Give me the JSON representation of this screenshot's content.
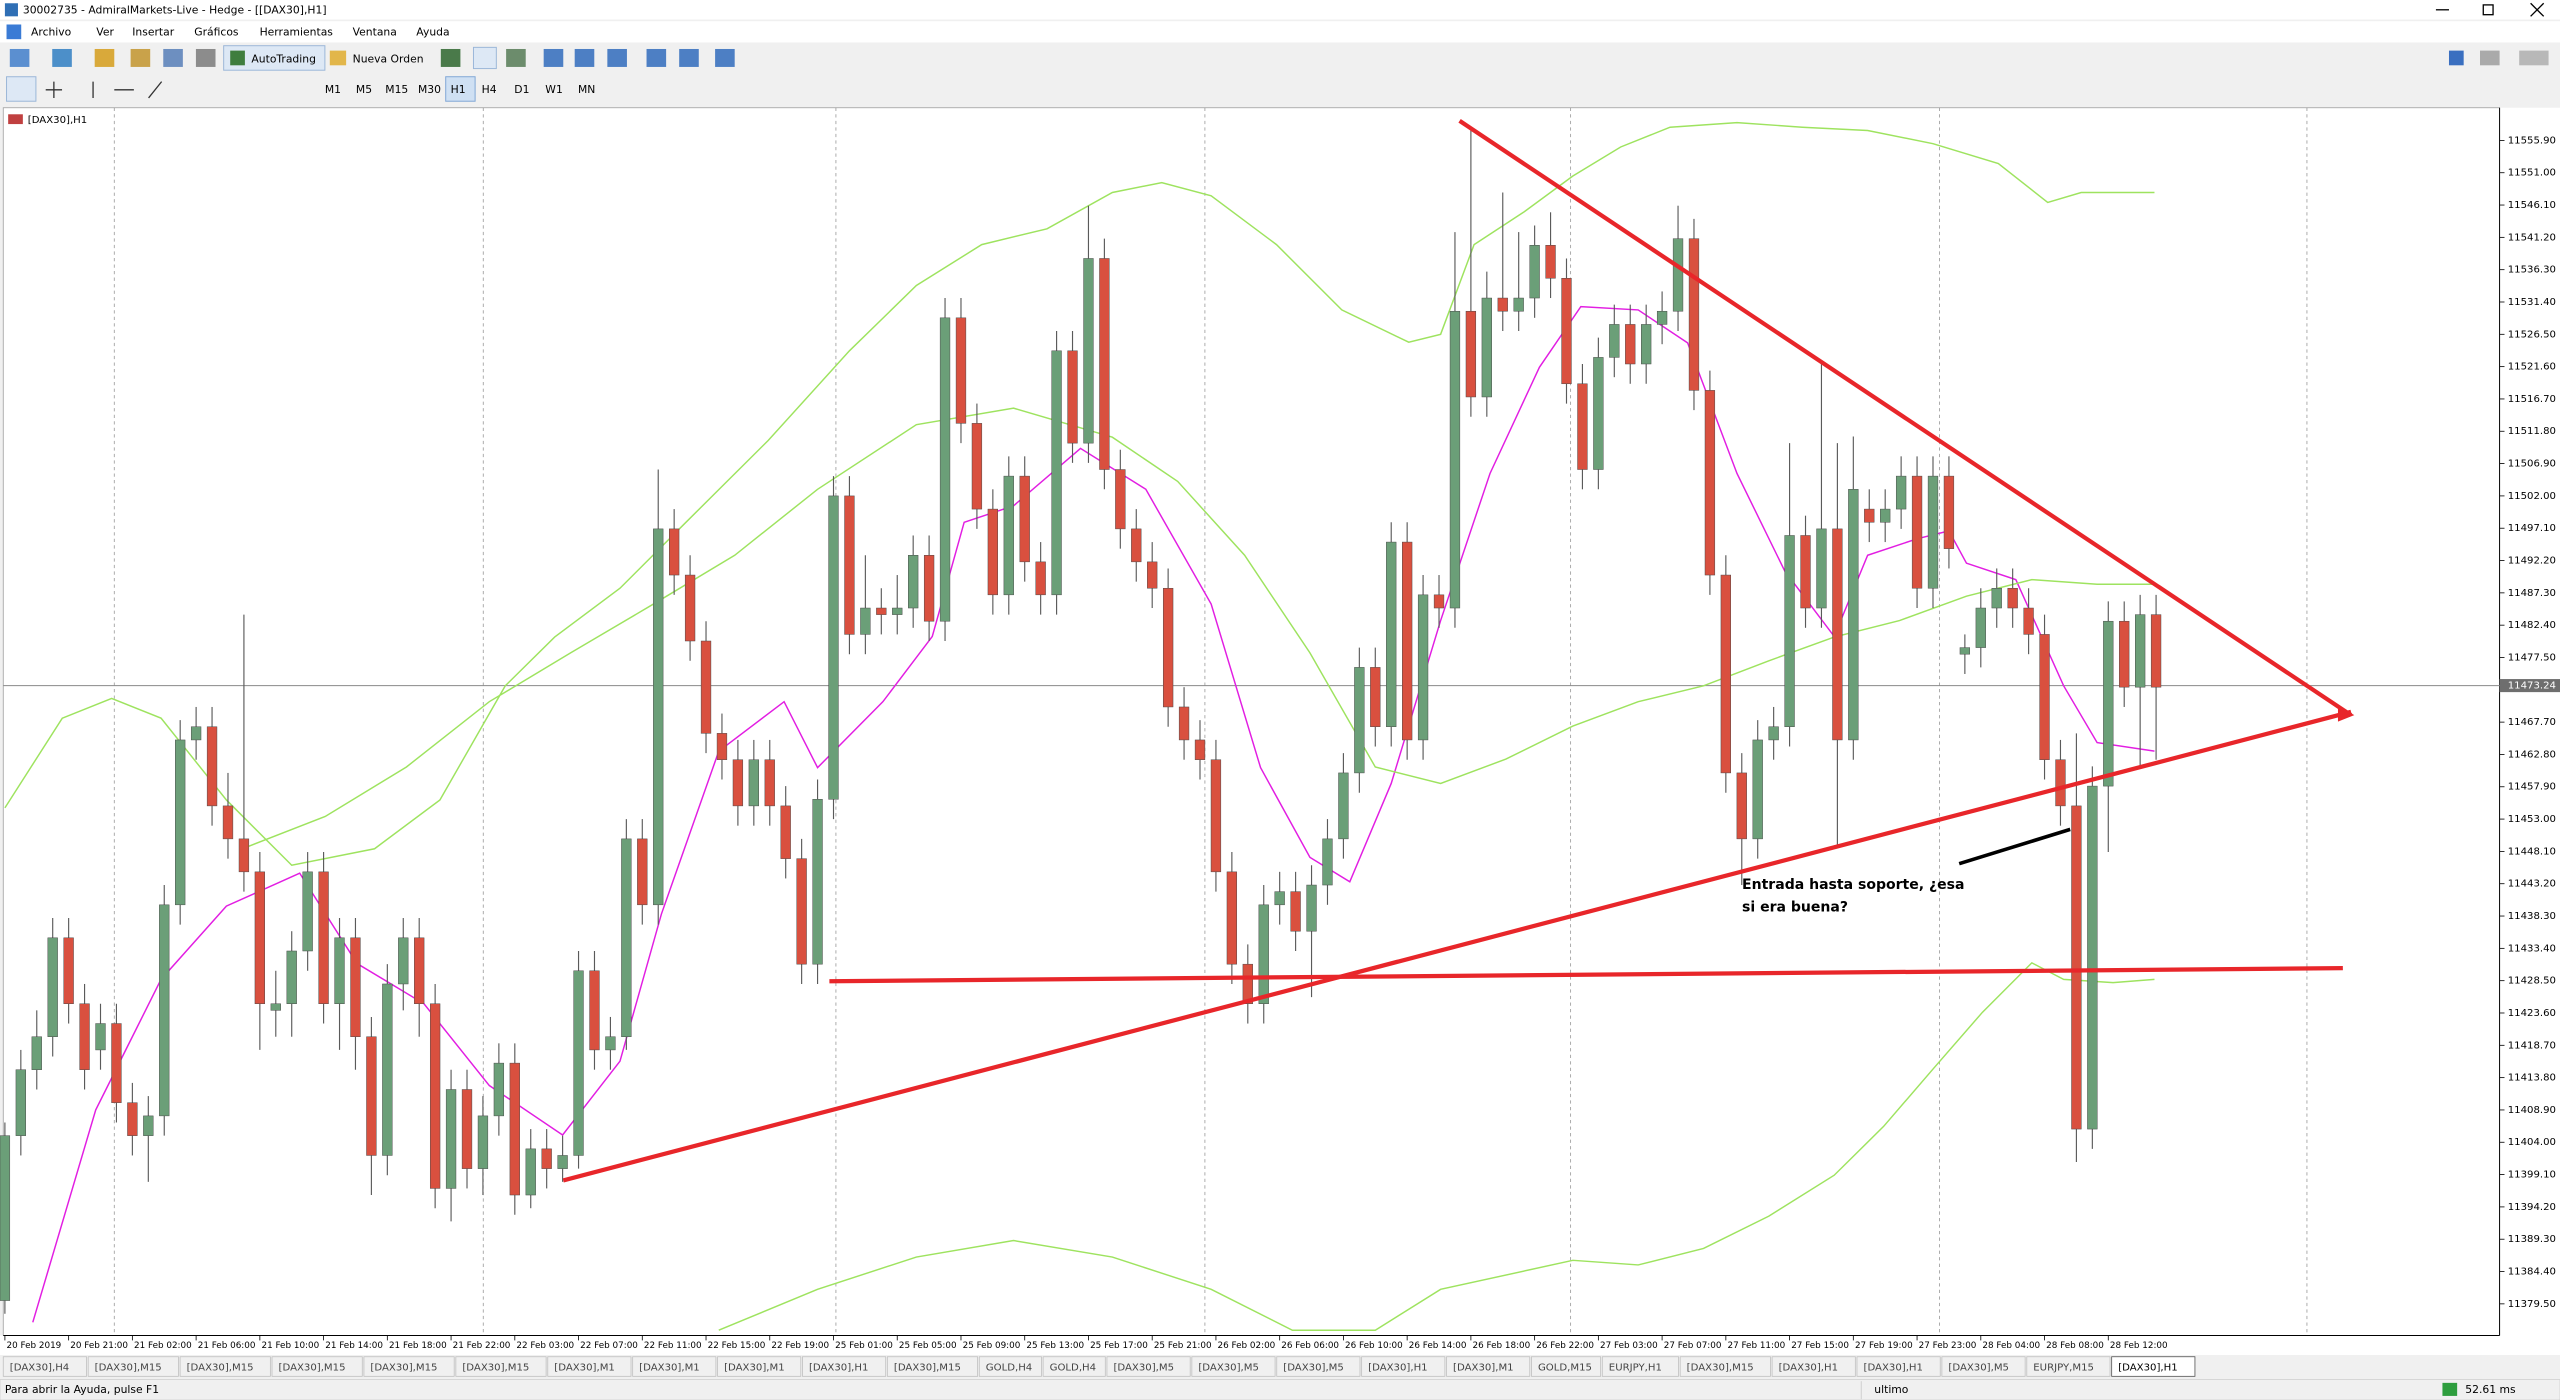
{
  "window": {
    "title": "30002735 - AdmiralMarkets-Live - Hedge - [[DAX30],H1]"
  },
  "menu": [
    "Archivo",
    "Ver",
    "Insertar",
    "Gráficos",
    "Herramientas",
    "Ventana",
    "Ayuda"
  ],
  "toolbar": {
    "autotrading": "AutoTrading",
    "new_order": "Nueva Orden",
    "timeframes": [
      "M1",
      "M5",
      "M15",
      "M30",
      "H1",
      "H4",
      "D1",
      "W1",
      "MN"
    ],
    "active_timeframe": "H1"
  },
  "chart_data": {
    "type": "candlestick",
    "symbol_label": "[DAX30],H1",
    "up_color": "#6b9f78",
    "down_color": "#d9503f",
    "ylim": [
      11374.7,
      11560.85
    ],
    "yticks": [
      {
        "value": 11555.9,
        "label": "11555.90"
      },
      {
        "value": 11551,
        "label": "11551.00"
      },
      {
        "value": 11546.1,
        "label": "11546.10"
      },
      {
        "value": 11541.2,
        "label": "11541.20"
      },
      {
        "value": 11536.3,
        "label": "11536.30"
      },
      {
        "value": 11531.4,
        "label": "11531.40"
      },
      {
        "value": 11526.5,
        "label": "11526.50"
      },
      {
        "value": 11521.6,
        "label": "11521.60"
      },
      {
        "value": 11516.7,
        "label": "11516.70"
      },
      {
        "value": 11511.8,
        "label": "11511.80"
      },
      {
        "value": 11506.9,
        "label": "11506.90"
      },
      {
        "value": 11502,
        "label": "11502.00"
      },
      {
        "value": 11497.1,
        "label": "11497.10"
      },
      {
        "value": 11492.2,
        "label": "11492.20"
      },
      {
        "value": 11487.3,
        "label": "11487.30"
      },
      {
        "value": 11482.4,
        "label": "11482.40"
      },
      {
        "value": 11477.5,
        "label": "11477.50"
      },
      {
        "value": 11467.7,
        "label": "11467.70"
      },
      {
        "value": 11462.8,
        "label": "11462.80"
      },
      {
        "value": 11457.9,
        "label": "11457.90"
      },
      {
        "value": 11453,
        "label": "11453.00"
      },
      {
        "value": 11448.1,
        "label": "11448.10"
      },
      {
        "value": 11443.2,
        "label": "11443.20"
      },
      {
        "value": 11438.3,
        "label": "11438.30"
      },
      {
        "value": 11433.4,
        "label": "11433.40"
      },
      {
        "value": 11428.5,
        "label": "11428.50"
      },
      {
        "value": 11423.6,
        "label": "11423.60"
      },
      {
        "value": 11418.7,
        "label": "11418.70"
      },
      {
        "value": 11413.8,
        "label": "11413.80"
      },
      {
        "value": 11408.9,
        "label": "11408.90"
      },
      {
        "value": 11404,
        "label": "11404.00"
      },
      {
        "value": 11399.1,
        "label": "11399.10"
      },
      {
        "value": 11394.2,
        "label": "11394.20"
      },
      {
        "value": 11389.3,
        "label": "11389.30"
      },
      {
        "value": 11384.4,
        "label": "11384.40"
      },
      {
        "value": 11379.5,
        "label": "11379.50"
      }
    ],
    "current_price": 11473.24,
    "time_labels": [
      "20 Feb 2019",
      "20 Feb 21:00",
      "21 Feb 02:00",
      "21 Feb 06:00",
      "21 Feb 10:00",
      "21 Feb 14:00",
      "21 Feb 18:00",
      "21 Feb 22:00",
      "22 Feb 03:00",
      "22 Feb 07:00",
      "22 Feb 11:00",
      "22 Feb 15:00",
      "22 Feb 19:00",
      "25 Feb 01:00",
      "25 Feb 05:00",
      "25 Feb 09:00",
      "25 Feb 13:00",
      "25 Feb 17:00",
      "25 Feb 21:00",
      "26 Feb 02:00",
      "26 Feb 06:00",
      "26 Feb 10:00",
      "26 Feb 14:00",
      "26 Feb 18:00",
      "26 Feb 22:00",
      "27 Feb 03:00",
      "27 Feb 07:00",
      "27 Feb 11:00",
      "27 Feb 15:00",
      "27 Feb 19:00",
      "27 Feb 23:00",
      "28 Feb 04:00",
      "28 Feb 08:00",
      "28 Feb 12:00"
    ],
    "candles": [
      [
        11380,
        11407,
        11378,
        11405
      ],
      [
        11405,
        11418,
        11402,
        11415
      ],
      [
        11415,
        11424,
        11412,
        11420
      ],
      [
        11420,
        11438,
        11417,
        11435
      ],
      [
        11435,
        11438,
        11422,
        11425
      ],
      [
        11425,
        11428,
        11412,
        11415
      ],
      [
        11418,
        11425,
        11415,
        11422
      ],
      [
        11422,
        11425,
        11407,
        11410
      ],
      [
        11410,
        11413,
        11402,
        11405
      ],
      [
        11405,
        11411,
        11398,
        11408
      ],
      [
        11408,
        11443,
        11405,
        11440
      ],
      [
        11440,
        11468,
        11437,
        11465
      ],
      [
        11465,
        11470,
        11462,
        11467
      ],
      [
        11467,
        11470,
        11452,
        11455
      ],
      [
        11455,
        11460,
        11447,
        11450
      ],
      [
        11450,
        11484,
        11442,
        11445
      ],
      [
        11445,
        11448,
        11418,
        11425
      ],
      [
        11424,
        11430,
        11420,
        11425
      ],
      [
        11425,
        11436,
        11420,
        11433
      ],
      [
        11433,
        11448,
        11430,
        11445
      ],
      [
        11445,
        11448,
        11422,
        11425
      ],
      [
        11425,
        11438,
        11418,
        11435
      ],
      [
        11435,
        11438,
        11415,
        11420
      ],
      [
        11420,
        11423,
        11396,
        11402
      ],
      [
        11402,
        11431,
        11399,
        11428
      ],
      [
        11428,
        11438,
        11424,
        11435
      ],
      [
        11435,
        11438,
        11420,
        11425
      ],
      [
        11425,
        11428,
        11394,
        11397
      ],
      [
        11397,
        11415,
        11392,
        11412
      ],
      [
        11412,
        11415,
        11397,
        11400
      ],
      [
        11400,
        11411,
        11396,
        11408
      ],
      [
        11408,
        11419,
        11405,
        11416
      ],
      [
        11416,
        11419,
        11393,
        11396
      ],
      [
        11396,
        11406,
        11394,
        11403
      ],
      [
        11403,
        11406,
        11397,
        11400
      ],
      [
        11400,
        11405,
        11398,
        11402
      ],
      [
        11402,
        11433,
        11400,
        11430
      ],
      [
        11430,
        11433,
        11415,
        11418
      ],
      [
        11418,
        11423,
        11415,
        11420
      ],
      [
        11420,
        11453,
        11418,
        11450
      ],
      [
        11450,
        11453,
        11437,
        11440
      ],
      [
        11440,
        11506,
        11437,
        11497
      ],
      [
        11497,
        11500,
        11487,
        11490
      ],
      [
        11490,
        11493,
        11477,
        11480
      ],
      [
        11480,
        11483,
        11463,
        11466
      ],
      [
        11466,
        11469,
        11459,
        11462
      ],
      [
        11462,
        11465,
        11452,
        11455
      ],
      [
        11455,
        11465,
        11452,
        11462
      ],
      [
        11462,
        11465,
        11452,
        11455
      ],
      [
        11455,
        11458,
        11444,
        11447
      ],
      [
        11447,
        11450,
        11428,
        11431
      ],
      [
        11431,
        11459,
        11428,
        11456
      ],
      [
        11456,
        11505,
        11453,
        11502
      ],
      [
        11502,
        11505,
        11478,
        11481
      ],
      [
        11481,
        11493,
        11478,
        11485
      ],
      [
        11485,
        11488,
        11481,
        11484
      ],
      [
        11484,
        11490,
        11481,
        11485
      ],
      [
        11485,
        11496,
        11482,
        11493
      ],
      [
        11493,
        11496,
        11480,
        11483
      ],
      [
        11483,
        11532,
        11480,
        11529
      ],
      [
        11529,
        11532,
        11510,
        11513
      ],
      [
        11513,
        11516,
        11497,
        11500
      ],
      [
        11500,
        11503,
        11484,
        11487
      ],
      [
        11487,
        11508,
        11484,
        11505
      ],
      [
        11505,
        11508,
        11489,
        11492
      ],
      [
        11492,
        11495,
        11484,
        11487
      ],
      [
        11487,
        11527,
        11484,
        11524
      ],
      [
        11524,
        11527,
        11507,
        11510
      ],
      [
        11510,
        11546,
        11507,
        11538
      ],
      [
        11538,
        11541,
        11503,
        11506
      ],
      [
        11506,
        11509,
        11494,
        11497
      ],
      [
        11497,
        11500,
        11489,
        11492
      ],
      [
        11492,
        11495,
        11485,
        11488
      ],
      [
        11488,
        11491,
        11467,
        11470
      ],
      [
        11470,
        11473,
        11462,
        11465
      ],
      [
        11465,
        11468,
        11459,
        11462
      ],
      [
        11462,
        11465,
        11442,
        11445
      ],
      [
        11445,
        11448,
        11428,
        11431
      ],
      [
        11431,
        11434,
        11422,
        11425
      ],
      [
        11425,
        11443,
        11422,
        11440
      ],
      [
        11440,
        11445,
        11437,
        11442
      ],
      [
        11442,
        11445,
        11433,
        11436
      ],
      [
        11436,
        11446,
        11426,
        11443
      ],
      [
        11443,
        11453,
        11440,
        11450
      ],
      [
        11450,
        11463,
        11447,
        11460
      ],
      [
        11460,
        11479,
        11457,
        11476
      ],
      [
        11476,
        11479,
        11464,
        11467
      ],
      [
        11467,
        11498,
        11464,
        11495
      ],
      [
        11495,
        11498,
        11462,
        11465
      ],
      [
        11465,
        11490,
        11462,
        11487
      ],
      [
        11487,
        11490,
        11482,
        11485
      ],
      [
        11485,
        11542,
        11482,
        11530
      ],
      [
        11530,
        11558,
        11514,
        11517
      ],
      [
        11517,
        11536,
        11514,
        11532
      ],
      [
        11532,
        11548,
        11527,
        11530
      ],
      [
        11530,
        11542,
        11527,
        11532
      ],
      [
        11532,
        11543,
        11529,
        11540
      ],
      [
        11540,
        11545,
        11532,
        11535
      ],
      [
        11535,
        11538,
        11516,
        11519
      ],
      [
        11519,
        11522,
        11503,
        11506
      ],
      [
        11506,
        11526,
        11503,
        11523
      ],
      [
        11523,
        11531,
        11520,
        11528
      ],
      [
        11528,
        11531,
        11519,
        11522
      ],
      [
        11522,
        11531,
        11519,
        11528
      ],
      [
        11528,
        11533,
        11525,
        11530
      ],
      [
        11530,
        11546,
        11527,
        11541
      ],
      [
        11541,
        11544,
        11515,
        11518
      ],
      [
        11518,
        11521,
        11487,
        11490
      ],
      [
        11490,
        11493,
        11457,
        11460
      ],
      [
        11460,
        11463,
        11443,
        11450
      ],
      [
        11450,
        11468,
        11447,
        11465
      ],
      [
        11465,
        11470,
        11462,
        11467
      ],
      [
        11467,
        11510,
        11464,
        11496
      ],
      [
        11496,
        11499,
        11482,
        11485
      ],
      [
        11485,
        11522,
        11482,
        11497
      ],
      [
        11497,
        11510,
        11449,
        11465
      ],
      [
        11465,
        11511,
        11462,
        11503
      ],
      [
        11500,
        11503,
        11495,
        11498
      ],
      [
        11498,
        11503,
        11495,
        11500
      ],
      [
        11500,
        11508,
        11497,
        11505
      ],
      [
        11505,
        11508,
        11485,
        11488
      ],
      [
        11488,
        11508,
        11485,
        11505
      ],
      [
        11505,
        11508,
        11491,
        11494
      ],
      [
        11478,
        11481,
        11475,
        11479
      ],
      [
        11479,
        11488,
        11476,
        11485
      ],
      [
        11485,
        11491,
        11482,
        11488
      ],
      [
        11488,
        11491,
        11482,
        11485
      ],
      [
        11485,
        11488,
        11478,
        11481
      ],
      [
        11481,
        11484,
        11459,
        11462
      ],
      [
        11462,
        11465,
        11452,
        11455
      ],
      [
        11455,
        11466,
        11401,
        11406
      ],
      [
        11406,
        11461,
        11403,
        11458
      ],
      [
        11458,
        11486,
        11448,
        11483
      ],
      [
        11483,
        11486,
        11470,
        11473
      ],
      [
        11473,
        11487,
        11461,
        11484
      ],
      [
        11484,
        11487,
        11462,
        11473
      ]
    ],
    "indicators": {
      "ma": {
        "color": "#e21ee2",
        "x": [
          1.75,
          5.7,
          9.8,
          13.9,
          18.5,
          22.1,
          26.3,
          30.4,
          35,
          38.6,
          41.2,
          44.8,
          48.9,
          51,
          55.1,
          58.2,
          60.2,
          63.3,
          67.5,
          71.6,
          75.7,
          78.8,
          81.9,
          84.4,
          87,
          90.1,
          93.2,
          96.3,
          98.9,
          102.5,
          105.6,
          108.7,
          111.7,
          114.8,
          116.9,
          120,
          122,
          123.1,
          126.2,
          129.2,
          131.3,
          134.9
        ],
        "values": [
          11376.7,
          11408.9,
          11428.7,
          11439.8,
          11444.8,
          11431.1,
          11425,
          11412.6,
          11405.1,
          11416.3,
          11438.6,
          11463.3,
          11470.8,
          11460.8,
          11470.8,
          11480.7,
          11498,
          11500.5,
          11509.2,
          11503,
          11485.6,
          11460.8,
          11447.2,
          11443.5,
          11458.4,
          11483.1,
          11505.4,
          11521.5,
          11530.7,
          11530.2,
          11525.2,
          11505.4,
          11490.6,
          11480.7,
          11493,
          11495.5,
          11496.7,
          11491.8,
          11489.3,
          11473.2,
          11464.6,
          11463.3
        ]
      },
      "bb_upper": {
        "color": "#9ee35f",
        "x": [
          0,
          3.6,
          6.7,
          9.8,
          13.9,
          18,
          23.2,
          27.3,
          31.4,
          34.5,
          38.6,
          42.7,
          47.9,
          53,
          57.2,
          61.3,
          65.4,
          69.5,
          72.6,
          75.7,
          79.8,
          83.9,
          88.1,
          90.1,
          92.2,
          95.3,
          98.4,
          101.4,
          104.5,
          108.7,
          112.8,
          116.9,
          121,
          125.1,
          128.2,
          130.3,
          134.9
        ],
        "values": [
          11454.7,
          11468.3,
          11471.3,
          11468.3,
          11455.9,
          11446,
          11448.5,
          11455.9,
          11473.2,
          11480.6,
          11488,
          11497.9,
          11510.4,
          11524,
          11533.9,
          11540.1,
          11542.5,
          11548,
          11549.5,
          11547.5,
          11540.1,
          11530.2,
          11525.3,
          11526.5,
          11540.1,
          11545,
          11550.5,
          11554.9,
          11557.9,
          11558.6,
          11557.9,
          11557.4,
          11555.4,
          11552.4,
          11546.5,
          11548,
          11548
        ]
      },
      "bb_middle": {
        "color": "#9ee35f",
        "x": [
          14.9,
          20.1,
          25.2,
          30.4,
          35.5,
          40.7,
          45.8,
          51,
          57.2,
          63.3,
          69.5,
          73.6,
          77.8,
          81.9,
          86,
          90.1,
          94.2,
          98.4,
          102.5,
          106.6,
          110.7,
          114.8,
          118.9,
          123.1,
          127.2,
          131.3,
          134.9
        ],
        "values": [
          11448.5,
          11453.4,
          11460.9,
          11470.8,
          11478.2,
          11485.6,
          11493,
          11503,
          11512.8,
          11515.3,
          11510.9,
          11504.2,
          11493,
          11478.2,
          11460.9,
          11458.4,
          11462.1,
          11467.1,
          11470.8,
          11473.2,
          11477,
          11480.6,
          11483.1,
          11486.8,
          11489.3,
          11488.6,
          11488.6
        ]
      },
      "bb_lower": {
        "color": "#9ee35f",
        "x": [
          44.8,
          51,
          57.2,
          63.3,
          69.5,
          75.7,
          80.8,
          86,
          90.1,
          98.4,
          102.5,
          106.6,
          110.7,
          114.8,
          117.9,
          121,
          124.1,
          127.2,
          129.2,
          132.3,
          134.9
        ],
        "values": [
          11375.5,
          11381.7,
          11386.6,
          11389.1,
          11386.6,
          11381.7,
          11375.5,
          11375.5,
          11381.7,
          11386.1,
          11385.4,
          11387.9,
          11392.8,
          11399,
          11406.4,
          11415.1,
          11423.7,
          11431.2,
          11428.7,
          11428.2,
          11428.7
        ]
      }
    }
  },
  "annotation": [
    "Entrada hasta soporte, ¿esa",
    "si era buena?"
  ],
  "tabs": [
    "[DAX30],H4",
    "[DAX30],M15",
    "[DAX30],M15",
    "[DAX30],M15",
    "[DAX30],M15",
    "[DAX30],M15",
    "[DAX30],M1",
    "[DAX30],M1",
    "[DAX30],M1",
    "[DAX30],H1",
    "[DAX30],M15",
    "GOLD,H4",
    "GOLD,H4",
    "[DAX30],M5",
    "[DAX30],M5",
    "[DAX30],M5",
    "[DAX30],H1",
    "[DAX30],M1",
    "GOLD,M15",
    "EURJPY,H1",
    "[DAX30],M15",
    "[DAX30],H1",
    "[DAX30],H1",
    "[DAX30],M5",
    "EURJPY,M15",
    "[DAX30],H1"
  ],
  "status": {
    "help": "Para abrir la Ayuda, pulse F1",
    "profile": "ultimo",
    "ping": "52.61 ms"
  }
}
